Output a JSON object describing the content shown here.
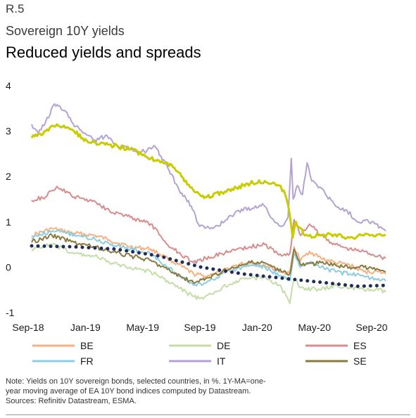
{
  "header": {
    "label": "R.5",
    "subtitle": "Sovereign 10Y yields",
    "title": "Reduced yields and spreads"
  },
  "notes": {
    "line1": "Note: Yields on 10Y sovereign bonds, selected countries, in %. 1Y-MA=one-",
    "line2": "year moving average of EA 10Y bond indices computed by Datastream.",
    "line3": "Sources: Refinitiv Datastream, ESMA."
  },
  "chart_data": {
    "type": "line",
    "x_tick_labels": [
      "Sep-18",
      "Jan-19",
      "May-19",
      "Sep-19",
      "Jan-20",
      "May-20",
      "Sep-20"
    ],
    "y_ticks": [
      -1,
      0,
      1,
      2,
      3,
      4
    ],
    "ylim": [
      -1,
      4
    ],
    "xlim": [
      "2018-09-01",
      "2020-10-01"
    ],
    "legend_position": "bottom",
    "series": [
      {
        "name": "BE",
        "color": "#f6b183",
        "style": "solid",
        "points": [
          [
            "2018-09-01",
            0.7
          ],
          [
            "2018-10-15",
            0.85
          ],
          [
            "2018-12-01",
            0.75
          ],
          [
            "2019-01-15",
            0.7
          ],
          [
            "2019-02-15",
            0.6
          ],
          [
            "2019-04-01",
            0.45
          ],
          [
            "2019-05-15",
            0.4
          ],
          [
            "2019-06-20",
            0.2
          ],
          [
            "2019-08-15",
            -0.15
          ],
          [
            "2019-09-10",
            -0.2
          ],
          [
            "2019-10-15",
            -0.1
          ],
          [
            "2019-11-15",
            0.05
          ],
          [
            "2019-12-15",
            0.1
          ],
          [
            "2020-01-15",
            0.05
          ],
          [
            "2020-02-20",
            -0.1
          ],
          [
            "2020-03-08",
            -0.15
          ],
          [
            "2020-03-18",
            0.45
          ],
          [
            "2020-04-01",
            0.15
          ],
          [
            "2020-04-20",
            0.35
          ],
          [
            "2020-05-15",
            0.2
          ],
          [
            "2020-06-15",
            0.1
          ],
          [
            "2020-07-15",
            0.05
          ],
          [
            "2020-08-15",
            -0.1
          ],
          [
            "2020-09-15",
            -0.1
          ],
          [
            "2020-10-01",
            -0.15
          ]
        ]
      },
      {
        "name": "DE",
        "color": "#c5dda8",
        "style": "solid",
        "points": [
          [
            "2018-09-01",
            0.4
          ],
          [
            "2018-10-15",
            0.5
          ],
          [
            "2018-12-01",
            0.3
          ],
          [
            "2019-01-15",
            0.25
          ],
          [
            "2019-02-15",
            0.1
          ],
          [
            "2019-04-01",
            0.0
          ],
          [
            "2019-05-15",
            -0.1
          ],
          [
            "2019-06-20",
            -0.3
          ],
          [
            "2019-08-15",
            -0.65
          ],
          [
            "2019-09-05",
            -0.7
          ],
          [
            "2019-10-15",
            -0.45
          ],
          [
            "2019-11-15",
            -0.3
          ],
          [
            "2019-12-15",
            -0.25
          ],
          [
            "2020-01-15",
            -0.2
          ],
          [
            "2020-02-20",
            -0.45
          ],
          [
            "2020-03-09",
            -0.8
          ],
          [
            "2020-03-18",
            -0.25
          ],
          [
            "2020-04-01",
            -0.45
          ],
          [
            "2020-05-15",
            -0.5
          ],
          [
            "2020-06-15",
            -0.4
          ],
          [
            "2020-07-15",
            -0.45
          ],
          [
            "2020-08-15",
            -0.5
          ],
          [
            "2020-09-15",
            -0.5
          ],
          [
            "2020-10-01",
            -0.55
          ]
        ]
      },
      {
        "name": "ES",
        "color": "#d98c8c",
        "style": "solid",
        "points": [
          [
            "2018-09-01",
            1.48
          ],
          [
            "2018-10-01",
            1.55
          ],
          [
            "2018-10-25",
            1.78
          ],
          [
            "2018-12-01",
            1.55
          ],
          [
            "2019-01-15",
            1.45
          ],
          [
            "2019-02-15",
            1.25
          ],
          [
            "2019-04-01",
            1.1
          ],
          [
            "2019-05-15",
            0.95
          ],
          [
            "2019-06-20",
            0.5
          ],
          [
            "2019-08-15",
            0.1
          ],
          [
            "2019-09-10",
            0.2
          ],
          [
            "2019-10-15",
            0.3
          ],
          [
            "2019-11-15",
            0.4
          ],
          [
            "2019-12-15",
            0.45
          ],
          [
            "2020-01-15",
            0.5
          ],
          [
            "2020-02-20",
            0.25
          ],
          [
            "2020-03-09",
            0.3
          ],
          [
            "2020-03-18",
            1.05
          ],
          [
            "2020-04-01",
            0.7
          ],
          [
            "2020-04-20",
            0.95
          ],
          [
            "2020-05-15",
            0.7
          ],
          [
            "2020-06-15",
            0.5
          ],
          [
            "2020-07-15",
            0.4
          ],
          [
            "2020-08-15",
            0.35
          ],
          [
            "2020-09-15",
            0.25
          ],
          [
            "2020-10-01",
            0.2
          ]
        ]
      },
      {
        "name": "FR",
        "color": "#8ccde0",
        "style": "solid",
        "points": [
          [
            "2018-09-01",
            0.65
          ],
          [
            "2018-10-15",
            0.8
          ],
          [
            "2018-12-01",
            0.72
          ],
          [
            "2019-01-15",
            0.62
          ],
          [
            "2019-02-15",
            0.52
          ],
          [
            "2019-04-01",
            0.4
          ],
          [
            "2019-05-15",
            0.3
          ],
          [
            "2019-06-20",
            0.0
          ],
          [
            "2019-08-15",
            -0.4
          ],
          [
            "2019-09-10",
            -0.35
          ],
          [
            "2019-10-15",
            -0.15
          ],
          [
            "2019-11-15",
            -0.05
          ],
          [
            "2019-12-15",
            0.05
          ],
          [
            "2020-01-15",
            0.0
          ],
          [
            "2020-02-20",
            -0.2
          ],
          [
            "2020-03-09",
            -0.3
          ],
          [
            "2020-03-18",
            0.3
          ],
          [
            "2020-04-01",
            0.0
          ],
          [
            "2020-04-20",
            0.1
          ],
          [
            "2020-05-15",
            0.0
          ],
          [
            "2020-06-15",
            -0.1
          ],
          [
            "2020-07-15",
            -0.15
          ],
          [
            "2020-08-15",
            -0.2
          ],
          [
            "2020-09-15",
            -0.25
          ],
          [
            "2020-10-01",
            -0.3
          ]
        ]
      },
      {
        "name": "IT",
        "color": "#b3a2d2",
        "style": "solid",
        "points": [
          [
            "2018-09-01",
            3.15
          ],
          [
            "2018-09-15",
            2.95
          ],
          [
            "2018-10-01",
            3.2
          ],
          [
            "2018-10-20",
            3.6
          ],
          [
            "2018-11-10",
            3.45
          ],
          [
            "2018-12-05",
            3.1
          ],
          [
            "2019-01-15",
            2.8
          ],
          [
            "2019-02-10",
            2.9
          ],
          [
            "2019-03-01",
            2.7
          ],
          [
            "2019-04-01",
            2.6
          ],
          [
            "2019-05-01",
            2.55
          ],
          [
            "2019-05-25",
            2.65
          ],
          [
            "2019-06-20",
            2.2
          ],
          [
            "2019-07-15",
            1.7
          ],
          [
            "2019-08-10",
            1.35
          ],
          [
            "2019-08-28",
            0.9
          ],
          [
            "2019-09-20",
            0.85
          ],
          [
            "2019-10-20",
            1.0
          ],
          [
            "2019-11-20",
            1.25
          ],
          [
            "2019-12-20",
            1.3
          ],
          [
            "2020-01-10",
            1.4
          ],
          [
            "2020-02-05",
            1.0
          ],
          [
            "2020-02-20",
            0.9
          ],
          [
            "2020-03-05",
            1.1
          ],
          [
            "2020-03-12",
            2.4
          ],
          [
            "2020-03-16",
            1.5
          ],
          [
            "2020-03-25",
            1.8
          ],
          [
            "2020-04-05",
            1.6
          ],
          [
            "2020-04-15",
            2.3
          ],
          [
            "2020-04-25",
            1.9
          ],
          [
            "2020-05-15",
            1.75
          ],
          [
            "2020-06-15",
            1.35
          ],
          [
            "2020-07-10",
            1.25
          ],
          [
            "2020-08-01",
            1.0
          ],
          [
            "2020-08-20",
            1.05
          ],
          [
            "2020-09-10",
            0.95
          ],
          [
            "2020-10-01",
            0.8
          ]
        ]
      },
      {
        "name": "SE",
        "color": "#8a7a3e",
        "style": "solid",
        "points": [
          [
            "2018-09-01",
            0.55
          ],
          [
            "2018-10-15",
            0.7
          ],
          [
            "2018-12-01",
            0.55
          ],
          [
            "2019-01-15",
            0.45
          ],
          [
            "2019-02-15",
            0.35
          ],
          [
            "2019-04-01",
            0.25
          ],
          [
            "2019-05-15",
            0.15
          ],
          [
            "2019-06-20",
            -0.05
          ],
          [
            "2019-08-15",
            -0.35
          ],
          [
            "2019-09-10",
            -0.25
          ],
          [
            "2019-10-15",
            -0.1
          ],
          [
            "2019-11-15",
            0.0
          ],
          [
            "2019-12-15",
            0.1
          ],
          [
            "2020-01-15",
            0.1
          ],
          [
            "2020-02-20",
            -0.1
          ],
          [
            "2020-03-09",
            -0.15
          ],
          [
            "2020-03-18",
            0.4
          ],
          [
            "2020-04-01",
            0.05
          ],
          [
            "2020-05-15",
            0.1
          ],
          [
            "2020-06-15",
            0.05
          ],
          [
            "2020-07-15",
            0.0
          ],
          [
            "2020-08-15",
            0.0
          ],
          [
            "2020-09-15",
            -0.05
          ],
          [
            "2020-10-01",
            -0.1
          ]
        ]
      },
      {
        "name": "",
        "color": "#c9cc00",
        "style": "solid",
        "width": 3,
        "points": [
          [
            "2018-09-01",
            2.85
          ],
          [
            "2018-10-01",
            3.0
          ],
          [
            "2018-10-25",
            3.15
          ],
          [
            "2018-12-01",
            3.0
          ],
          [
            "2019-01-01",
            2.75
          ],
          [
            "2019-02-15",
            2.7
          ],
          [
            "2019-04-01",
            2.6
          ],
          [
            "2019-05-15",
            2.4
          ],
          [
            "2019-06-20",
            2.3
          ],
          [
            "2019-07-20",
            2.0
          ],
          [
            "2019-08-20",
            1.65
          ],
          [
            "2019-09-10",
            1.55
          ],
          [
            "2019-10-15",
            1.65
          ],
          [
            "2019-11-15",
            1.75
          ],
          [
            "2019-12-15",
            1.85
          ],
          [
            "2020-01-15",
            1.9
          ],
          [
            "2020-02-15",
            1.8
          ],
          [
            "2020-02-28",
            1.6
          ],
          [
            "2020-03-08",
            1.2
          ],
          [
            "2020-03-15",
            0.65
          ],
          [
            "2020-03-22",
            1.0
          ],
          [
            "2020-04-10",
            0.7
          ],
          [
            "2020-05-15",
            0.7
          ],
          [
            "2020-06-15",
            0.72
          ],
          [
            "2020-07-15",
            0.65
          ],
          [
            "2020-08-15",
            0.7
          ],
          [
            "2020-09-15",
            0.72
          ],
          [
            "2020-10-01",
            0.7
          ]
        ]
      },
      {
        "name": "",
        "color": "#1f2e5c",
        "style": "dotted",
        "width": 3,
        "points": [
          [
            "2018-09-01",
            0.47
          ],
          [
            "2018-12-01",
            0.45
          ],
          [
            "2019-03-01",
            0.4
          ],
          [
            "2019-06-01",
            0.25
          ],
          [
            "2019-09-01",
            0.0
          ],
          [
            "2019-12-01",
            -0.15
          ],
          [
            "2020-03-01",
            -0.25
          ],
          [
            "2020-06-01",
            -0.35
          ],
          [
            "2020-08-01",
            -0.42
          ],
          [
            "2020-10-01",
            -0.4
          ]
        ]
      }
    ],
    "legend": [
      {
        "name": "BE",
        "color": "#f6b183"
      },
      {
        "name": "DE",
        "color": "#c5dda8"
      },
      {
        "name": "ES",
        "color": "#d98c8c"
      },
      {
        "name": "FR",
        "color": "#8ccde0"
      },
      {
        "name": "IT",
        "color": "#b3a2d2"
      },
      {
        "name": "SE",
        "color": "#8a7a3e"
      }
    ]
  }
}
